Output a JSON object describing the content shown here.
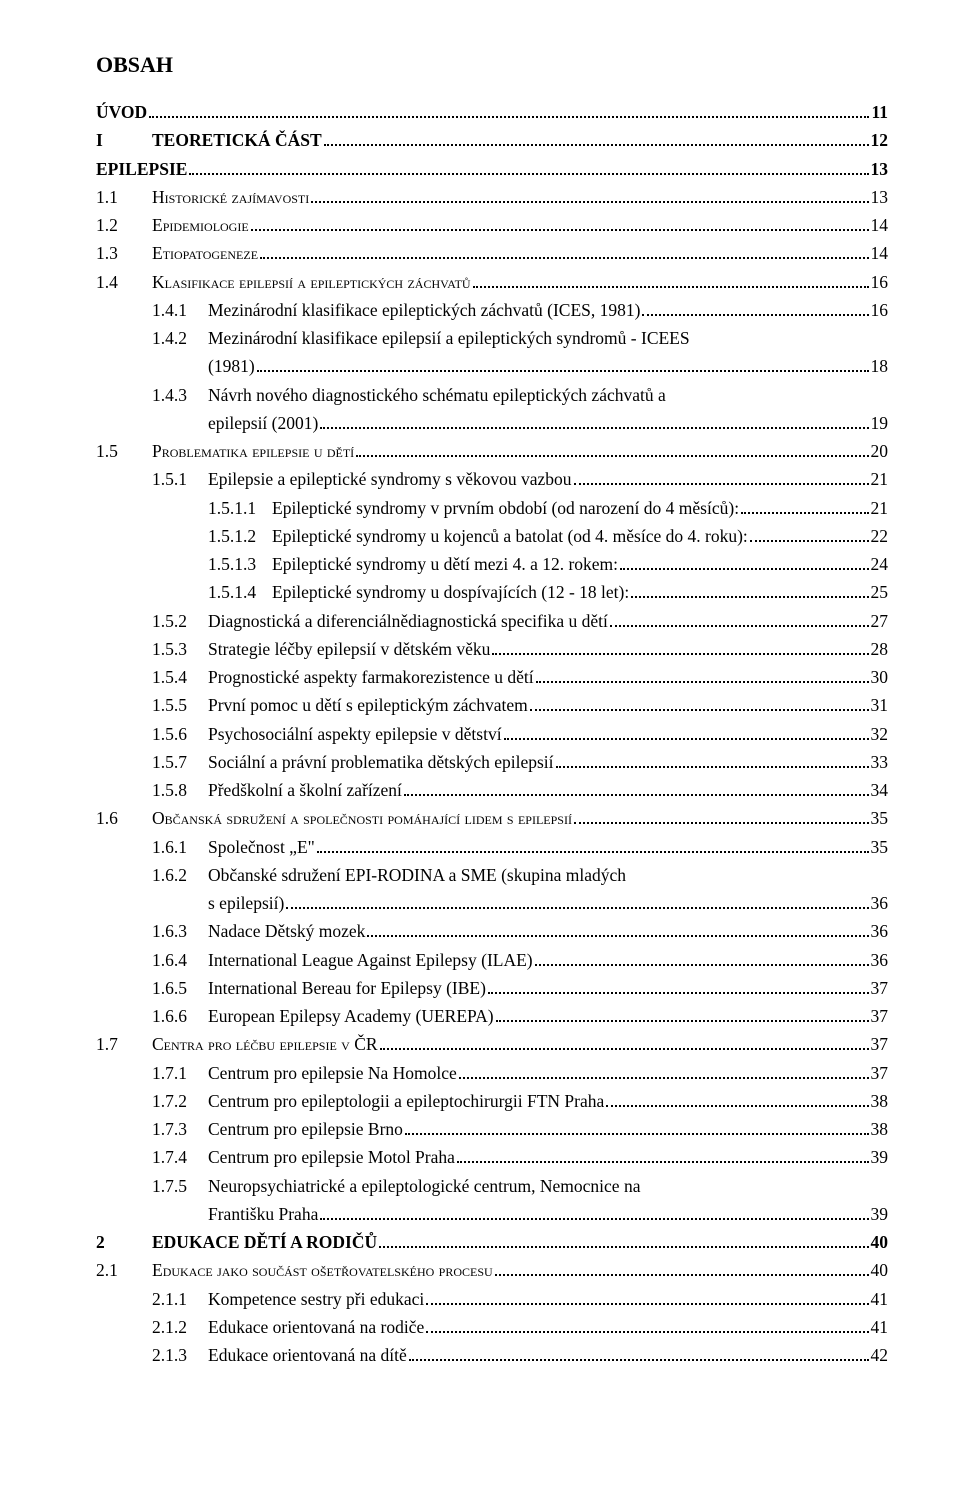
{
  "title": "OBSAH",
  "font": {
    "family": "Times New Roman",
    "body_size_pt": 13,
    "title_size_pt": 16,
    "text_color": "#000000",
    "background_color": "#ffffff"
  },
  "entries": [
    {
      "level": 0,
      "num": "",
      "text": "ÚVOD",
      "page": "11",
      "bold": true
    },
    {
      "level": 0,
      "num": "I",
      "text": "TEORETICKÁ ČÁST",
      "page": "12",
      "bold": true,
      "num_gap": true
    },
    {
      "level": 0,
      "num": "",
      "text": "EPILEPSIE",
      "page": "13",
      "bold": true
    },
    {
      "level": 1,
      "num": "1.1",
      "text": "Historické zajímavosti",
      "page": "13",
      "sc": true
    },
    {
      "level": 1,
      "num": "1.2",
      "text": "Epidemiologie",
      "page": "14",
      "sc": true
    },
    {
      "level": 1,
      "num": "1.3",
      "text": "Etiopatogeneze",
      "page": "14",
      "sc": true
    },
    {
      "level": 1,
      "num": "1.4",
      "text": "Klasifikace epilepsií a epileptických záchvatů",
      "page": "16",
      "sc": true
    },
    {
      "level": 2,
      "num": "1.4.1",
      "text": "Mezinárodní klasifikace epileptických záchvatů (ICES, 1981)",
      "page": "16"
    },
    {
      "level": 2,
      "num": "1.4.2",
      "text": "Mezinárodní klasifikace epilepsií a epileptických syndromů  - ICEES",
      "text2": "(1981)",
      "page": "18",
      "multiline": true
    },
    {
      "level": 2,
      "num": "1.4.3",
      "text": "Návrh nového diagnostického schématu epileptických záchvatů a",
      "text2": "epilepsií (2001)",
      "page": "19",
      "multiline": true
    },
    {
      "level": 1,
      "num": "1.5",
      "text": "Problematika epilepsie u dětí",
      "page": "20",
      "sc": true
    },
    {
      "level": 2,
      "num": "1.5.1",
      "text": "Epilepsie a epileptické syndromy s věkovou vazbou",
      "page": "21"
    },
    {
      "level": 3,
      "num": "1.5.1.1",
      "text": "Epileptické syndromy v prvním období (od narození do 4 měsíců):",
      "page": "21"
    },
    {
      "level": 3,
      "num": "1.5.1.2",
      "text": "Epileptické syndromy u kojenců a batolat (od 4. měsíce do 4. roku):",
      "page": "22"
    },
    {
      "level": 3,
      "num": "1.5.1.3",
      "text": "Epileptické syndromy u dětí mezi 4. a 12. rokem:",
      "page": "24"
    },
    {
      "level": 3,
      "num": "1.5.1.4",
      "text": "Epileptické syndromy u dospívajících (12 - 18 let):",
      "page": "25"
    },
    {
      "level": 2,
      "num": "1.5.2",
      "text": "Diagnostická a diferenciálnědiagnostická specifika u dětí",
      "page": "27"
    },
    {
      "level": 2,
      "num": "1.5.3",
      "text": "Strategie léčby epilepsií v dětském věku",
      "page": "28"
    },
    {
      "level": 2,
      "num": "1.5.4",
      "text": "Prognostické aspekty farmakorezistence u dětí",
      "page": "30"
    },
    {
      "level": 2,
      "num": "1.5.5",
      "text": "První pomoc u dětí s epileptickým záchvatem",
      "page": "31"
    },
    {
      "level": 2,
      "num": "1.5.6",
      "text": "Psychosociální aspekty epilepsie v dětství",
      "page": "32"
    },
    {
      "level": 2,
      "num": "1.5.7",
      "text": "Sociální a právní problematika dětských epilepsií",
      "page": "33"
    },
    {
      "level": 2,
      "num": "1.5.8",
      "text": "Předškolní a školní zařízení",
      "page": "34"
    },
    {
      "level": 1,
      "num": "1.6",
      "text": "Občanská sdružení a společnosti pomáhající lidem s epilepsií",
      "page": "35",
      "sc": true
    },
    {
      "level": 2,
      "num": "1.6.1",
      "text": "Společnost „E\"",
      "page": "35"
    },
    {
      "level": 2,
      "num": "1.6.2",
      "text": "Občanské sdružení EPI-RODINA a SME (skupina mladých",
      "text2": "s epilepsií)",
      "page": "36",
      "multiline": true
    },
    {
      "level": 2,
      "num": "1.6.3",
      "text": "Nadace Dětský mozek",
      "page": "36"
    },
    {
      "level": 2,
      "num": "1.6.4",
      "text": "International League Against Epilepsy (ILAE)",
      "page": "36"
    },
    {
      "level": 2,
      "num": "1.6.5",
      "text": "International Bereau for Epilepsy (IBE)",
      "page": "37"
    },
    {
      "level": 2,
      "num": "1.6.6",
      "text": "European Epilepsy Academy (UEREPA)",
      "page": "37"
    },
    {
      "level": 1,
      "num": "1.7",
      "text": "Centra pro léčbu epilepsie v ČR",
      "page": "37",
      "sc": true
    },
    {
      "level": 2,
      "num": "1.7.1",
      "text": "Centrum pro epilepsie Na Homolce",
      "page": "37"
    },
    {
      "level": 2,
      "num": "1.7.2",
      "text": "Centrum pro epileptologii a epileptochirurgii FTN Praha",
      "page": "38"
    },
    {
      "level": 2,
      "num": "1.7.3",
      "text": "Centrum pro epilepsie Brno",
      "page": "38"
    },
    {
      "level": 2,
      "num": "1.7.4",
      "text": "Centrum pro epilepsie Motol Praha",
      "page": "39"
    },
    {
      "level": 2,
      "num": "1.7.5",
      "text": "Neuropsychiatrické a epileptologické centrum, Nemocnice na",
      "text2": "Františku Praha",
      "page": "39",
      "multiline": true
    },
    {
      "level": 0,
      "num": "2",
      "text": "EDUKACE DĚTÍ A RODIČŮ",
      "page": "40",
      "bold": true,
      "num_gap": true
    },
    {
      "level": 1,
      "num": "2.1",
      "text": "Edukace jako součást ošetřovatelského procesu",
      "page": "40",
      "sc": true
    },
    {
      "level": 2,
      "num": "2.1.1",
      "text": "Kompetence sestry při edukaci",
      "page": "41"
    },
    {
      "level": 2,
      "num": "2.1.2",
      "text": "Edukace orientovaná na rodiče",
      "page": "41"
    },
    {
      "level": 2,
      "num": "2.1.3",
      "text": "Edukace orientovaná na dítě",
      "page": "42"
    }
  ]
}
